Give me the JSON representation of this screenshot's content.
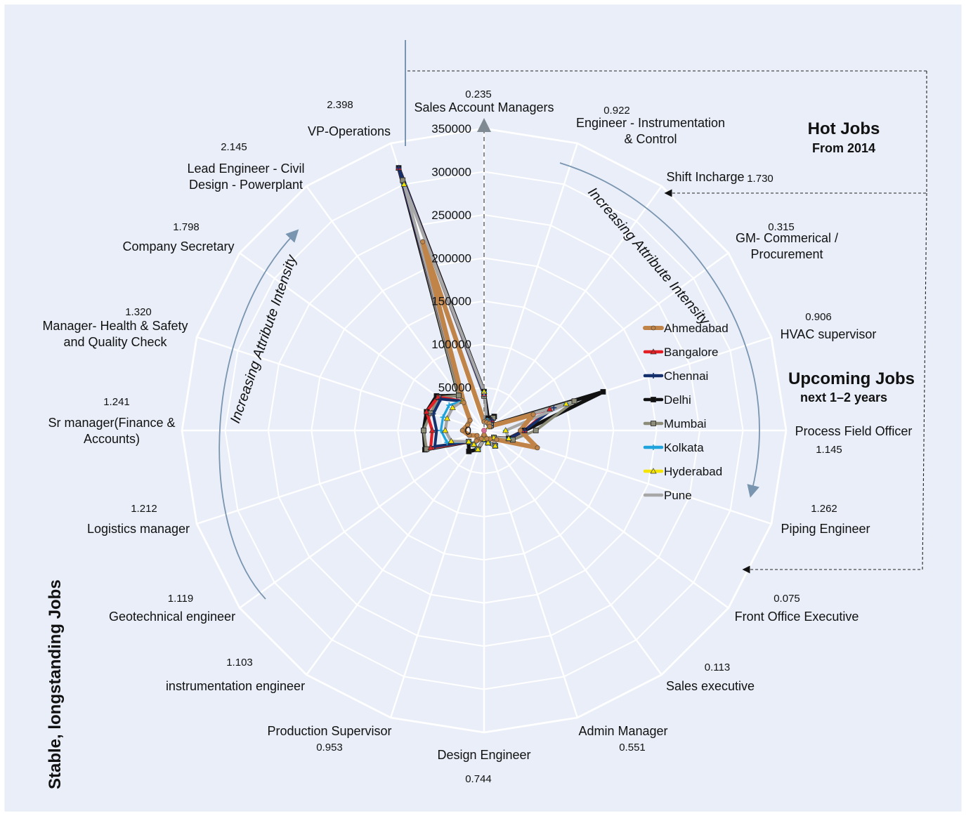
{
  "chart_data": {
    "type": "radar",
    "categories": [
      "Sales Account Managers",
      "Engineer - Instrumentation & Control",
      "Shift Incharge",
      "GM- Commerical / Procurement",
      "HVAC supervisor",
      "Process Field Officer",
      "Piping Engineer",
      "Front Office Executive",
      "Sales executive",
      "Admin Manager",
      "Design Engineer",
      "Production Supervisor",
      "instrumentation engineer",
      "Geotechnical engineer",
      "Logistics manager",
      "Sr manager(Finance & Accounts)",
      "Manager- Health & Safety and Quality Check",
      "Company Secretary",
      "Lead Engineer - Civil Design - Powerplant",
      "VP-Operations"
    ],
    "category_scores": [
      "0.235",
      "0.922",
      "1.730",
      "0.315",
      "0.906",
      "1.145",
      "1.262",
      "0.075",
      "0.113",
      "0.551",
      "0.744",
      "0.953",
      "1.103",
      "1.119",
      "1.212",
      "1.241",
      "1.320",
      "1.798",
      "2.145",
      "2.398"
    ],
    "rmax": 350000,
    "ticks": [
      "0",
      "50000",
      "100000",
      "150000",
      "200000",
      "250000",
      "300000",
      "350000"
    ],
    "series": [
      {
        "name": "Ahmedabad",
        "color": "#C08348",
        "marker": "circle",
        "values": [
          10000,
          10000,
          10000,
          8000,
          60000,
          42000,
          65000,
          18000,
          12000,
          10000,
          5000,
          10000,
          15000,
          10000,
          18000,
          25000,
          20000,
          20000,
          40000,
          230000
        ]
      },
      {
        "name": "Bangalore",
        "color": "#E31E24",
        "marker": "triangle",
        "values": [
          42000,
          12000,
          15000,
          8000,
          80000,
          47000,
          30000,
          14000,
          22000,
          15000,
          10000,
          23000,
          20000,
          22000,
          65000,
          60000,
          70000,
          66000,
          42000,
          320000
        ]
      },
      {
        "name": "Chennai",
        "color": "#14306C",
        "marker": "plus",
        "values": [
          42000,
          12000,
          15000,
          10000,
          85000,
          47000,
          30000,
          14000,
          22000,
          15000,
          10000,
          23000,
          20000,
          22000,
          60000,
          55000,
          62000,
          62000,
          42000,
          320000
        ]
      },
      {
        "name": "Delhi",
        "color": "#111111",
        "marker": "square",
        "values": [
          45000,
          15000,
          20000,
          10000,
          145000,
          47000,
          30000,
          14000,
          22000,
          15000,
          10000,
          23000,
          30000,
          22000,
          72000,
          70000,
          70000,
          68000,
          50000,
          320000
        ]
      },
      {
        "name": "Mumbai",
        "color": "#8C8C78",
        "marker": "square",
        "values": [
          40000,
          12000,
          18000,
          10000,
          110000,
          60000,
          35000,
          14000,
          22000,
          15000,
          10000,
          23000,
          20000,
          22000,
          70000,
          70000,
          65000,
          65000,
          50000,
          305000
        ]
      },
      {
        "name": "Kolkata",
        "color": "#1FA3DD",
        "marker": "plus",
        "values": [
          45000,
          12000,
          10000,
          8000,
          100000,
          25000,
          30000,
          14000,
          22000,
          15000,
          10000,
          23000,
          20000,
          22000,
          45000,
          50000,
          50000,
          50000,
          42000,
          300000
        ]
      },
      {
        "name": "Hyderabad",
        "color": "#F4E400",
        "marker": "triangle",
        "values": [
          45000,
          10000,
          10000,
          7000,
          100000,
          25000,
          30000,
          14000,
          22000,
          15000,
          10000,
          23000,
          20000,
          22000,
          40000,
          45000,
          45000,
          45000,
          42000,
          300000
        ]
      },
      {
        "name": "Pune",
        "color": "#A7A7A7",
        "marker": "none",
        "values": [
          45000,
          10000,
          10000,
          7000,
          105000,
          25000,
          30000,
          14000,
          22000,
          15000,
          10000,
          23000,
          20000,
          22000,
          40000,
          45000,
          45000,
          45000,
          42000,
          300000
        ]
      }
    ]
  },
  "annotations": {
    "hot_jobs_title": "Hot Jobs",
    "hot_jobs_subtitle": "From 2014",
    "upcoming_jobs_title": "Upcoming Jobs",
    "upcoming_jobs_subtitle": "next 1–2 years",
    "stable_jobs_title": "Stable, longstanding Jobs",
    "increasing_intensity": "Increasing Attribute Intensity"
  }
}
